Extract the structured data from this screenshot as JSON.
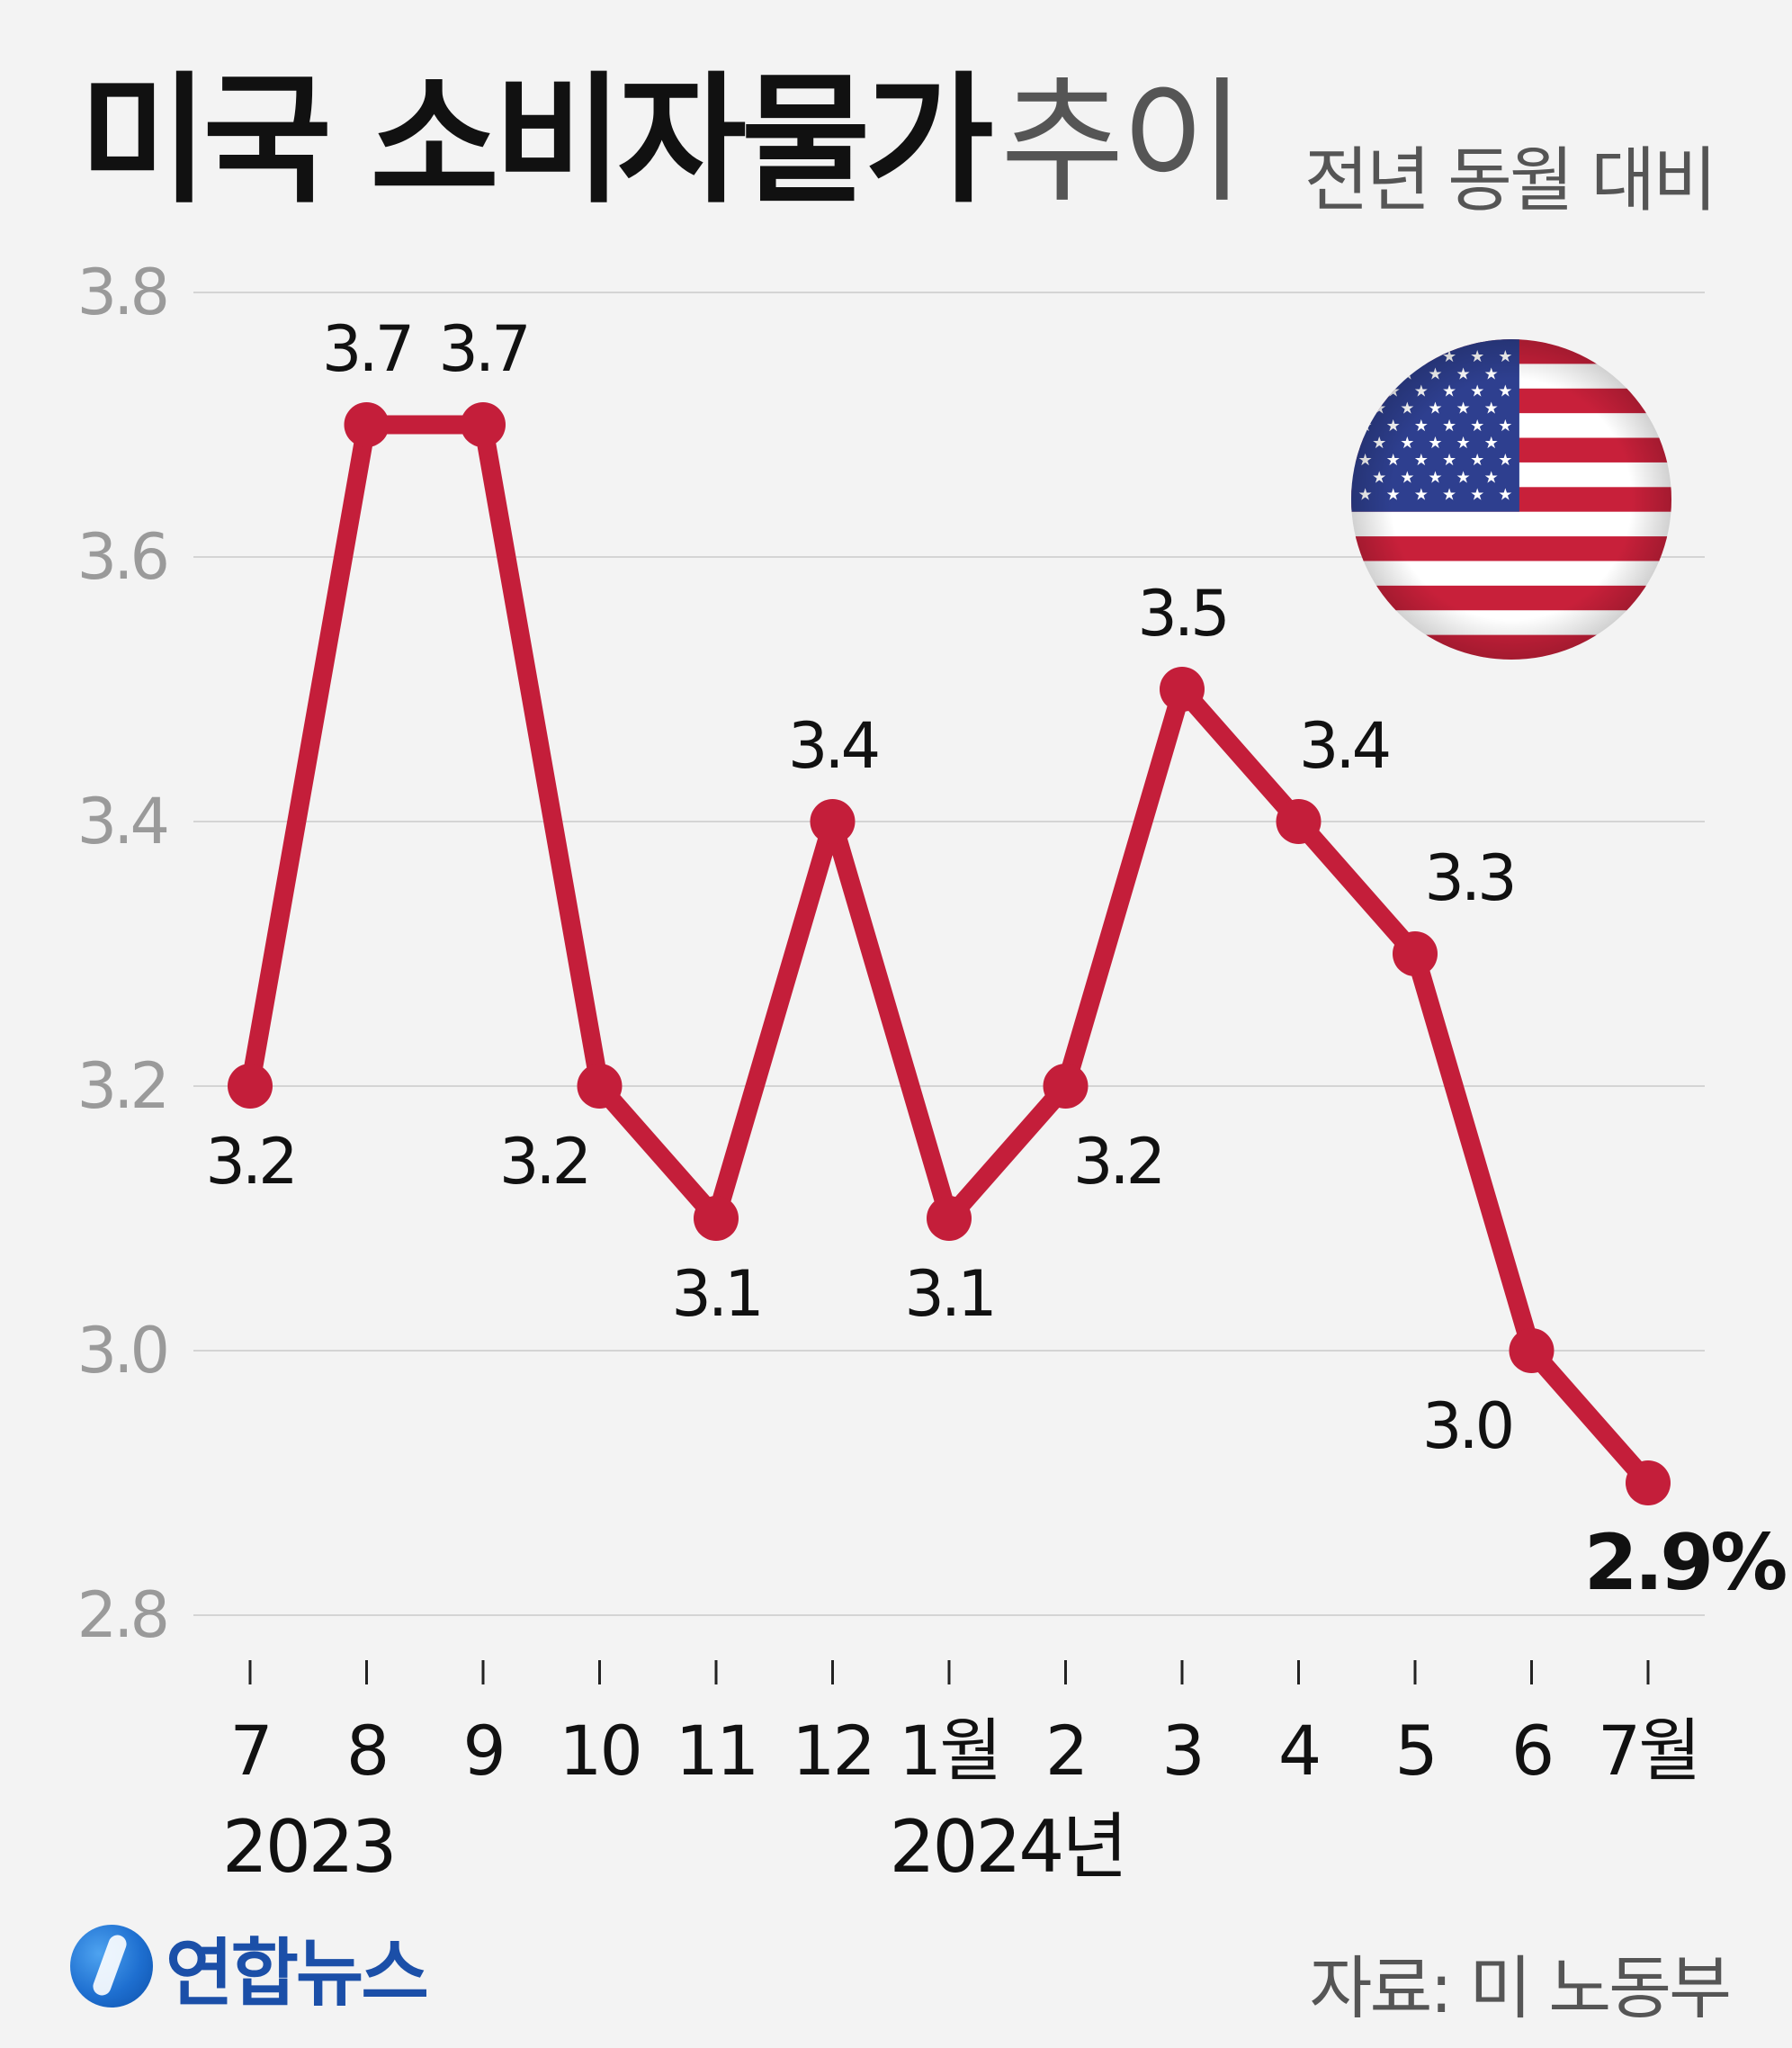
{
  "header": {
    "title_bold": "미국 소비자물가",
    "title_light": "추이",
    "subtitle": "전년 동월 대비"
  },
  "footer": {
    "logo_text": "연합뉴스",
    "source": "자료: 미 노동부"
  },
  "colors": {
    "line": "#c41e3a",
    "gridline": "#d4d4d4",
    "axis_text": "#9a9a9a",
    "flag_red": "#c8203a",
    "flag_blue": "#2e3f8f"
  },
  "icons": {
    "flag": "us-flag-icon",
    "logo": "yonhap-logo-icon"
  },
  "chart_data": {
    "type": "line",
    "ylim": [
      2.8,
      3.8
    ],
    "y_ticks": [
      "3.8",
      "3.6",
      "3.4",
      "3.2",
      "3.0",
      "2.8"
    ],
    "grid": true,
    "x_labels": [
      "7",
      "8",
      "9",
      "10",
      "11",
      "12",
      "1월",
      "2",
      "3",
      "4",
      "5",
      "6",
      "7월"
    ],
    "year_labels": [
      {
        "text": "2023",
        "span": [
          0,
          1
        ]
      },
      {
        "text": "2024년",
        "span": [
          6,
          7
        ]
      }
    ],
    "series": [
      {
        "values": [
          3.2,
          3.7,
          3.7,
          3.2,
          3.1,
          3.4,
          3.1,
          3.2,
          3.5,
          3.4,
          3.3,
          3.0,
          2.9
        ],
        "data_labels": [
          "3.2",
          "3.7",
          "3.7",
          "3.2",
          "3.1",
          "3.4",
          "3.1",
          "3.2",
          "3.5",
          "3.4",
          "3.3",
          "3.0",
          "2.9%"
        ]
      }
    ]
  }
}
